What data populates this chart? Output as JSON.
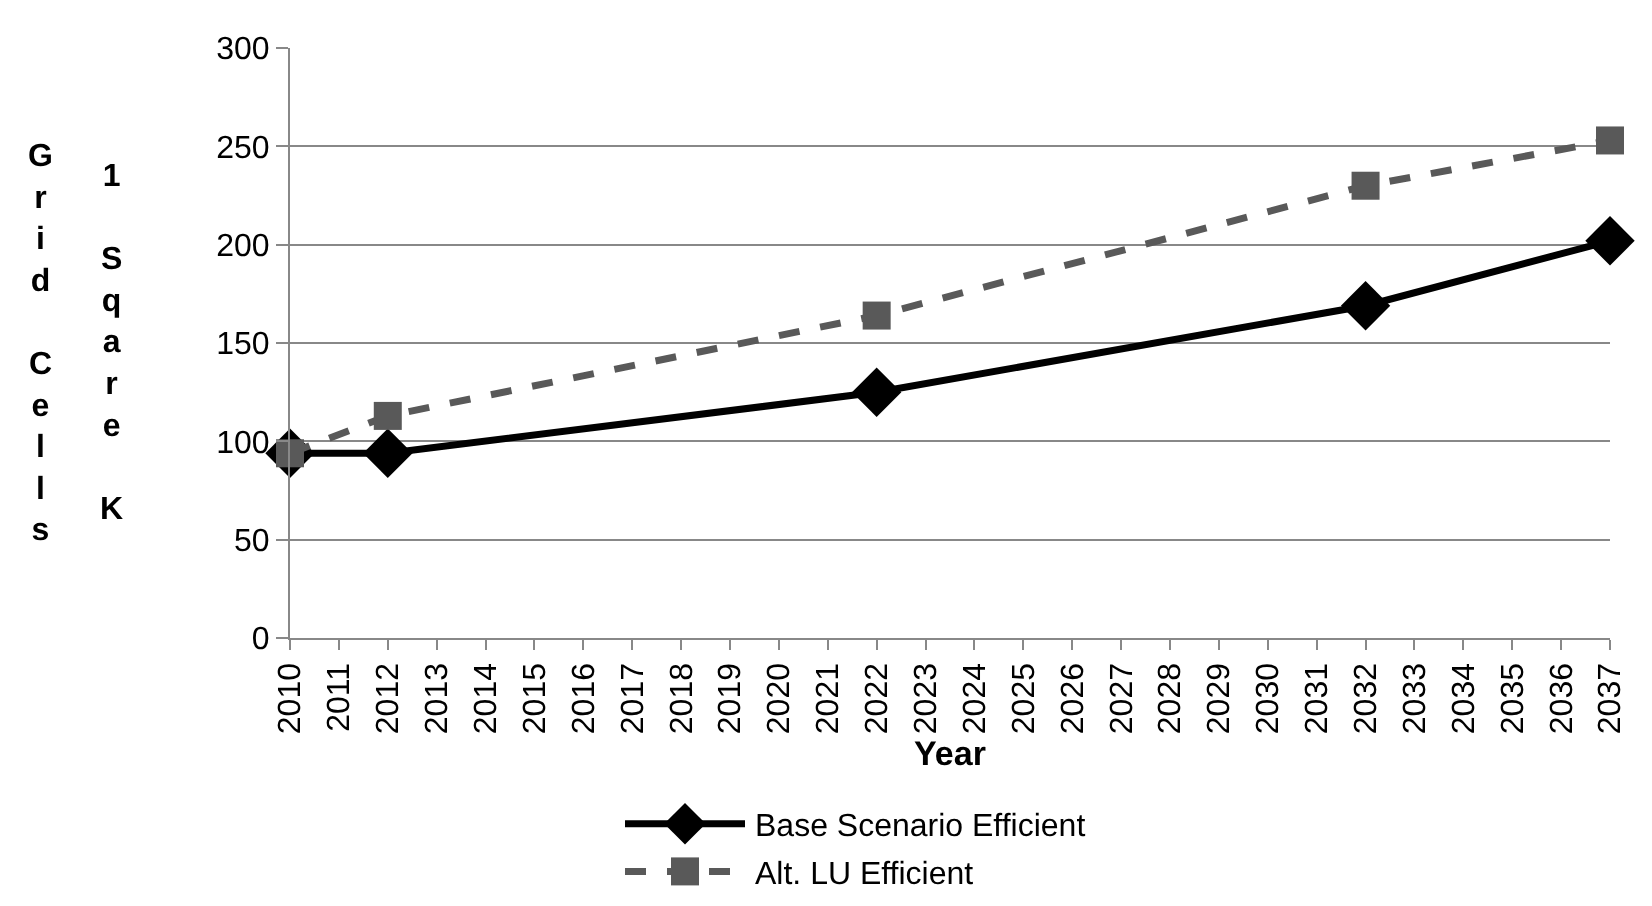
{
  "chart_data": {
    "type": "line",
    "xlabel": "Year",
    "ylabel": "Grid Cells",
    "annotations": [
      "1 Sqare K"
    ],
    "xlim": [
      2010,
      2037
    ],
    "xticks": [
      2010,
      2011,
      2012,
      2013,
      2014,
      2015,
      2016,
      2017,
      2018,
      2019,
      2020,
      2021,
      2022,
      2023,
      2024,
      2025,
      2026,
      2027,
      2028,
      2029,
      2030,
      2031,
      2032,
      2033,
      2034,
      2035,
      2036,
      2037
    ],
    "ylim": [
      0,
      300
    ],
    "yticks": [
      0,
      50,
      100,
      150,
      200,
      250,
      300
    ],
    "grid": "y",
    "legend": "bottom",
    "series": [
      {
        "name": "Base Scenario Efficient",
        "color": "#000000",
        "marker": "diamond",
        "line_style": "solid",
        "x": [
          2010,
          2012,
          2022,
          2032,
          2037
        ],
        "values": [
          94,
          94,
          125,
          169,
          202
        ]
      },
      {
        "name": "Alt. LU Efficient",
        "color": "#595959",
        "marker": "square",
        "line_style": "dashed",
        "x": [
          2010,
          2012,
          2022,
          2032,
          2037
        ],
        "values": [
          94,
          113,
          164,
          230,
          253
        ]
      }
    ]
  }
}
